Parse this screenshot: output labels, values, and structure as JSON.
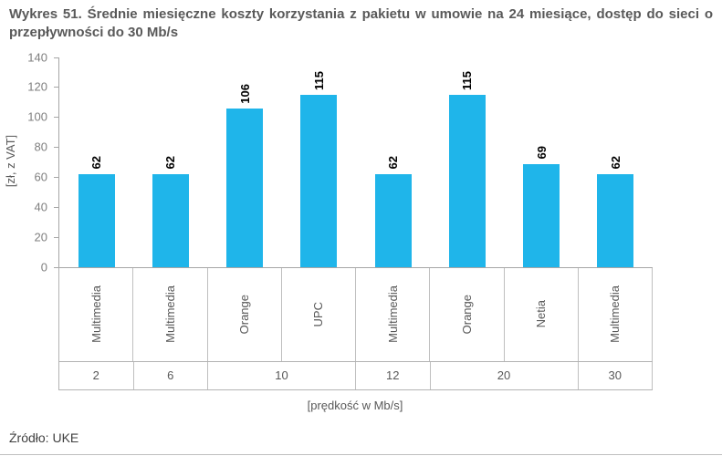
{
  "page": {
    "title": "Wykres 51. Średnie miesięczne koszty korzystania z pakietu w umowie na 24 miesiące, dostęp do sieci o przepływności do 30 Mb/s",
    "source": "Źródło: UKE"
  },
  "chart_data": {
    "type": "bar",
    "title": "Wykres 51. Średnie miesięczne koszty korzystania z pakietu w umowie na 24 miesiące, dostęp do sieci o przepływności do 30 Mb/s",
    "ylabel": "[zł, z VAT]",
    "xlabel": "[prędkość w Mb/s]",
    "ylim": [
      0,
      140
    ],
    "ytick_step": 20,
    "yticks": [
      0,
      20,
      40,
      60,
      80,
      100,
      120,
      140
    ],
    "grid": false,
    "legend": "none",
    "bar_color": "#1FB5EA",
    "categories": [
      "Multimedia",
      "Multimedia",
      "Orange",
      "UPC",
      "Multimedia",
      "Orange",
      "Netia",
      "Multimedia"
    ],
    "values": [
      62,
      62,
      106,
      115,
      62,
      115,
      69,
      62
    ],
    "groups": [
      {
        "label": "2",
        "span": 1
      },
      {
        "label": "6",
        "span": 1
      },
      {
        "label": "10",
        "span": 2
      },
      {
        "label": "12",
        "span": 1
      },
      {
        "label": "20",
        "span": 2
      },
      {
        "label": "30",
        "span": 1
      }
    ]
  }
}
